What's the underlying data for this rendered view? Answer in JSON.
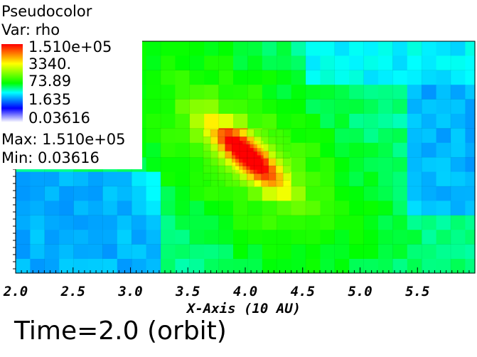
{
  "legend": {
    "plot_type": "Pseudocolor",
    "variable": "Var: rho",
    "ticks": [
      "1.510e+05",
      "3340.",
      "73.89",
      "1.635",
      "0.03616"
    ],
    "max_label": "Max:  1.510e+05",
    "min_label": "Min:  0.03616"
  },
  "caption": "Time=2.0 (orbit)",
  "chart_data": {
    "type": "heatmap",
    "title": "Pseudocolor",
    "variable": "rho",
    "xlabel": "X-Axis (10 AU)",
    "x_ticks": [
      "2.0",
      "2.5",
      "3.0",
      "3.5",
      "4.0",
      "4.5",
      "5.0",
      "5.5"
    ],
    "xlim": [
      2.0,
      6.0
    ],
    "colorbar": {
      "max": 151000,
      "min": 0.03616,
      "tick_values": [
        151000,
        3340,
        73.89,
        1.635,
        0.03616
      ],
      "scale": "log",
      "colors": [
        "#ff0000",
        "#ffff00",
        "#00ff00",
        "#00ffff",
        "#0000ff",
        "#ffffff"
      ]
    },
    "peak": {
      "x": 4.0,
      "value": 151000
    }
  }
}
